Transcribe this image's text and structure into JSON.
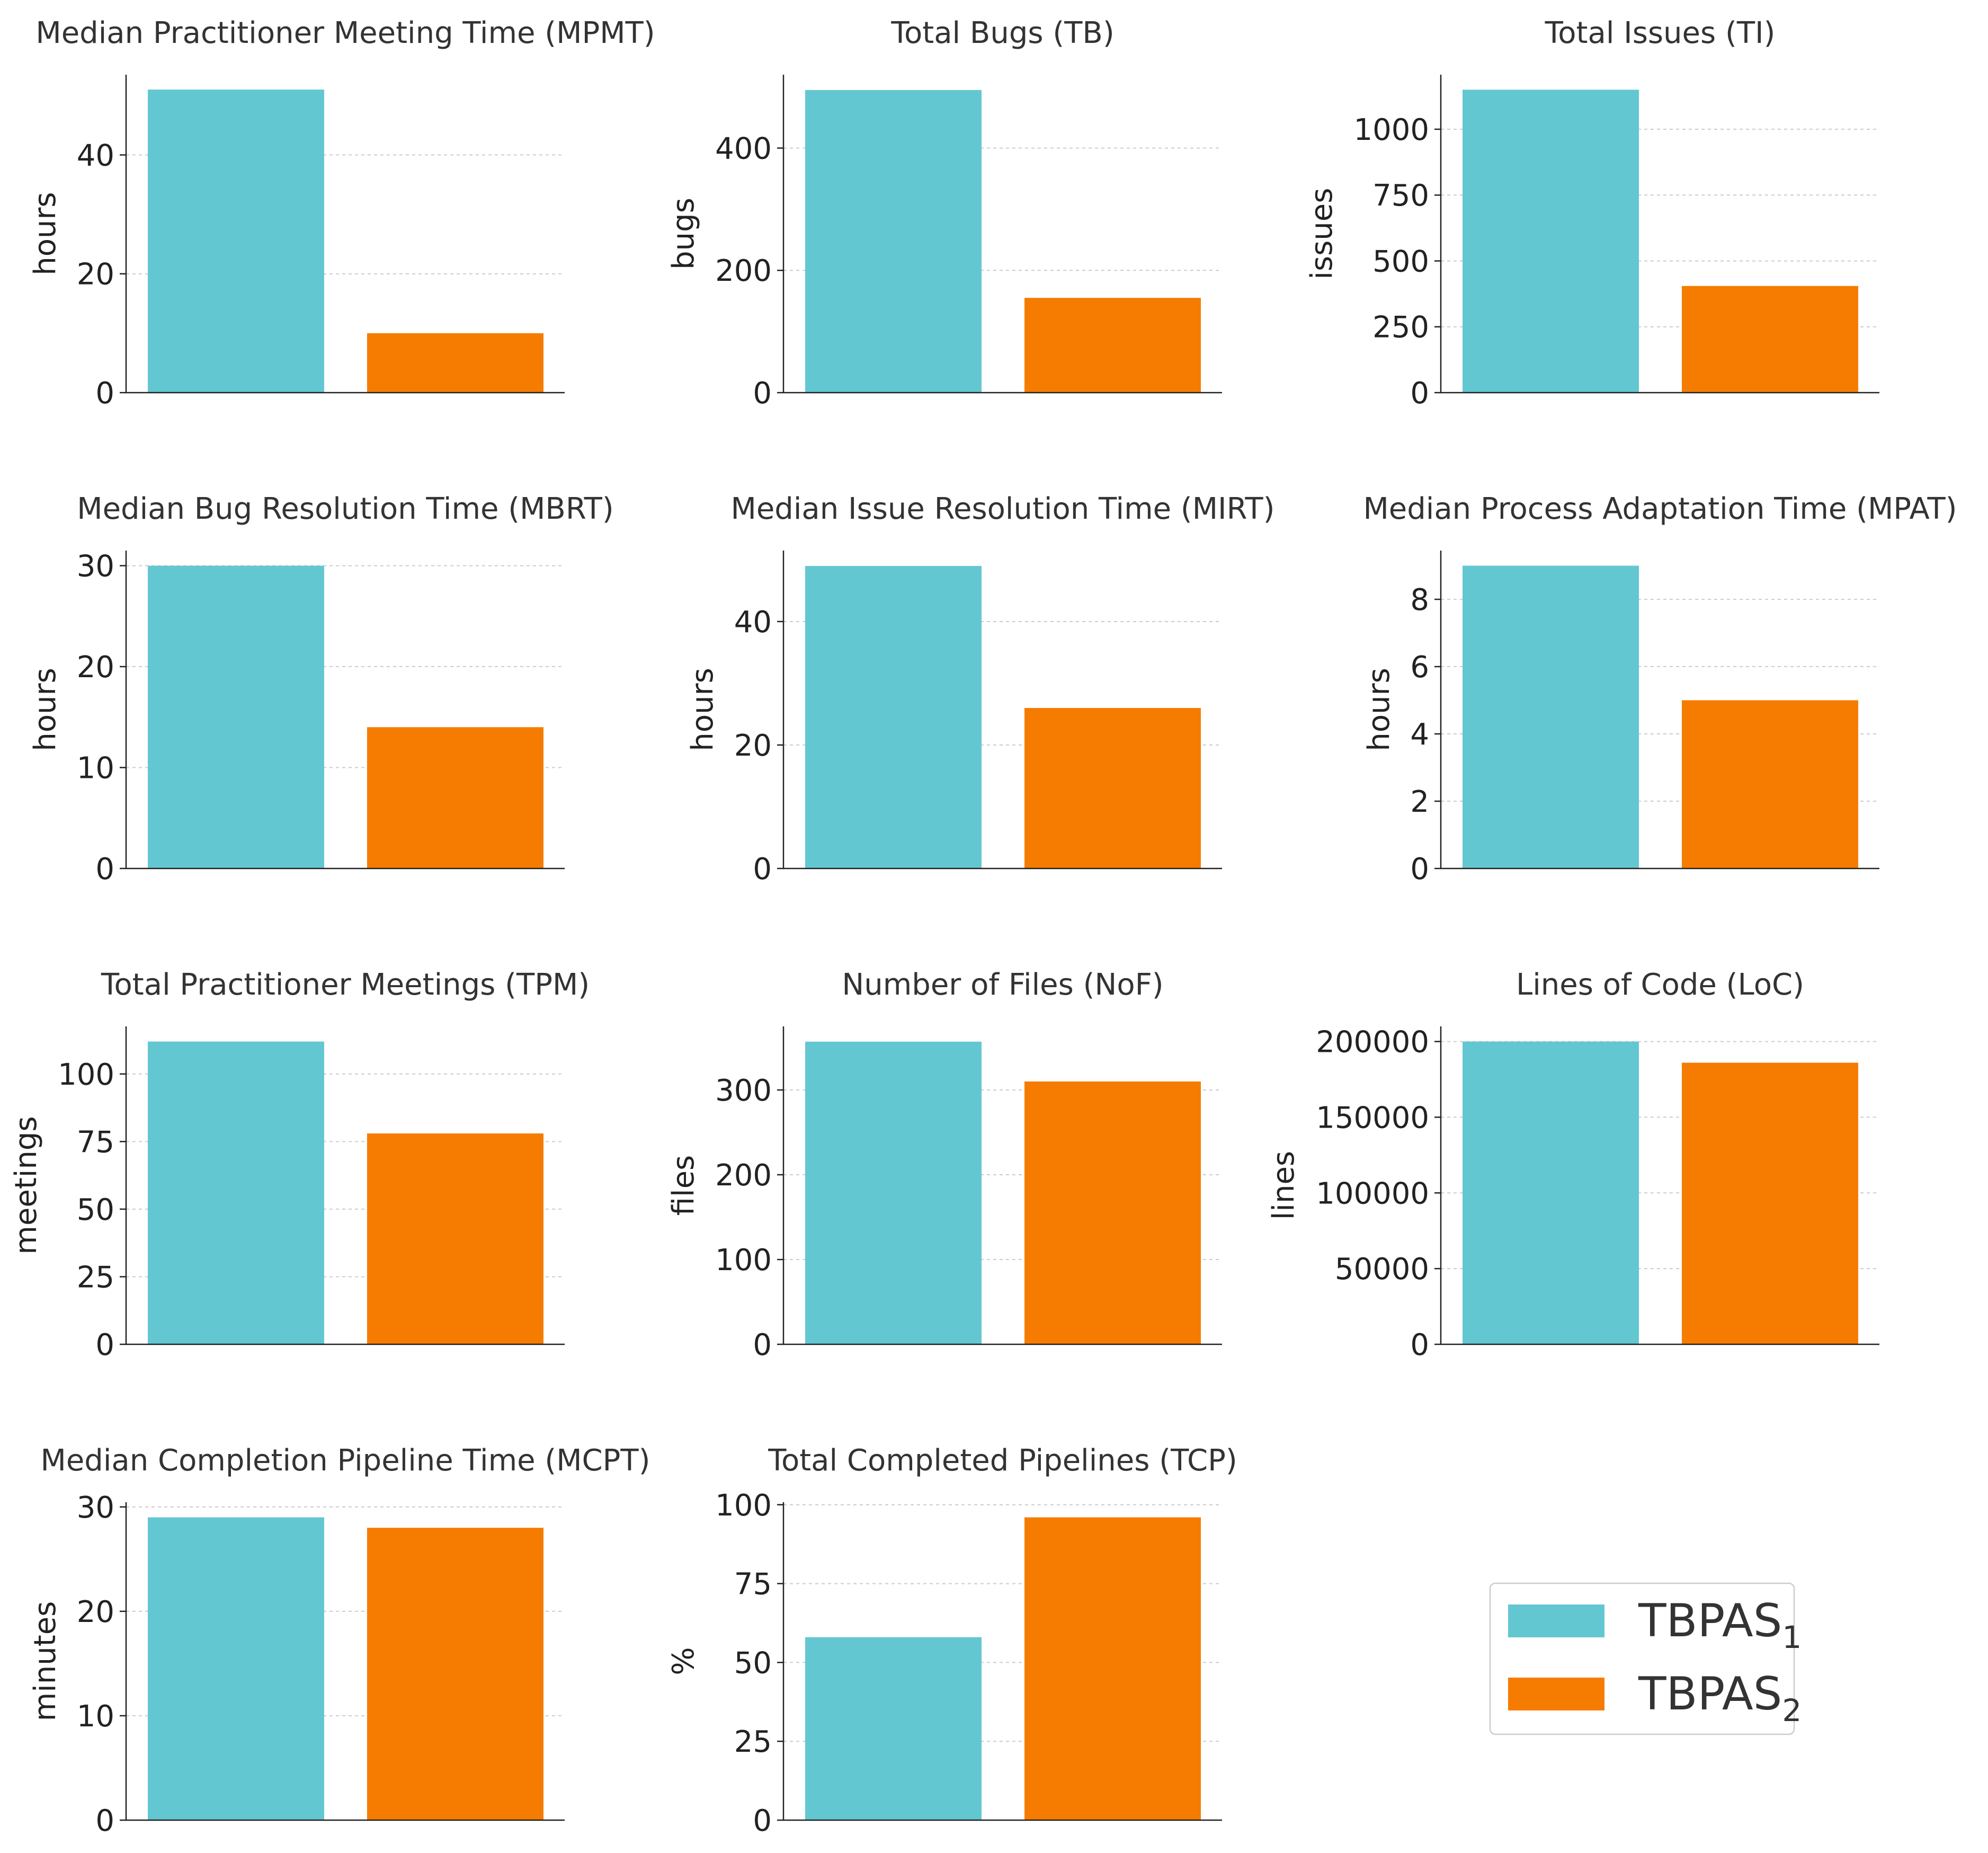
{
  "colors": {
    "series1": "#63c7d2",
    "series2": "#f57c00"
  },
  "legend": {
    "placement": "bottom-right",
    "entries": [
      {
        "base": "TBPAS",
        "sub": "1"
      },
      {
        "base": "TBPAS",
        "sub": "2"
      }
    ]
  },
  "chart_data": [
    {
      "type": "bar",
      "title": "Median Practitioner Meeting Time (MPMT)",
      "ylabel": "hours",
      "ylim": [
        0,
        53.5
      ],
      "yticks": [
        0,
        20,
        40
      ],
      "values": [
        51,
        10
      ]
    },
    {
      "type": "bar",
      "title": "Total Bugs (TB)",
      "ylabel": "bugs",
      "ylim": [
        0,
        520
      ],
      "yticks": [
        0,
        200,
        400
      ],
      "values": [
        495,
        155
      ]
    },
    {
      "type": "bar",
      "title": "Total Issues (TI)",
      "ylabel": "issues",
      "ylim": [
        0,
        1207
      ],
      "yticks": [
        0,
        250,
        500,
        750,
        1000
      ],
      "values": [
        1150,
        405
      ]
    },
    {
      "type": "bar",
      "title": "Median Bug Resolution Time (MBRT)",
      "ylabel": "hours",
      "ylim": [
        0,
        31.5
      ],
      "yticks": [
        0,
        10,
        20,
        30
      ],
      "values": [
        30,
        14
      ]
    },
    {
      "type": "bar",
      "title": "Median Issue Resolution Time (MIRT)",
      "ylabel": "hours",
      "ylim": [
        0,
        51.5
      ],
      "yticks": [
        0,
        20,
        40
      ],
      "values": [
        49,
        26
      ]
    },
    {
      "type": "bar",
      "title": "Median Process Adaptation Time (MPAT)",
      "ylabel": "hours",
      "ylim": [
        0,
        9.45
      ],
      "yticks": [
        0,
        2,
        4,
        6,
        8
      ],
      "values": [
        9,
        5
      ]
    },
    {
      "type": "bar",
      "title": "Total Practitioner Meetings (TPM)",
      "ylabel": "meetings",
      "ylim": [
        0,
        117.6
      ],
      "yticks": [
        0,
        25,
        50,
        75,
        100
      ],
      "values": [
        112,
        78
      ]
    },
    {
      "type": "bar",
      "title": "Number of Files (NoF)",
      "ylabel": "files",
      "ylim": [
        0,
        375
      ],
      "yticks": [
        0,
        100,
        200,
        300
      ],
      "values": [
        357,
        310
      ]
    },
    {
      "type": "bar",
      "title": "Lines of Code (LoC)",
      "ylabel": "lines",
      "ylim": [
        0,
        210000
      ],
      "yticks": [
        0,
        50000,
        100000,
        150000,
        200000
      ],
      "values": [
        200000,
        186000
      ]
    },
    {
      "type": "bar",
      "title": "Median Completion Pipeline Time (MCPT)",
      "ylabel": "minutes",
      "ylim": [
        0,
        30.45
      ],
      "yticks": [
        0,
        10,
        20,
        30
      ],
      "values": [
        29,
        28
      ]
    },
    {
      "type": "bar",
      "title": "Total Completed Pipelines (TCP)",
      "ylabel": "%",
      "ylim": [
        0,
        100.8
      ],
      "yticks": [
        0,
        25,
        50,
        75,
        100
      ],
      "values": [
        58,
        96
      ]
    }
  ]
}
